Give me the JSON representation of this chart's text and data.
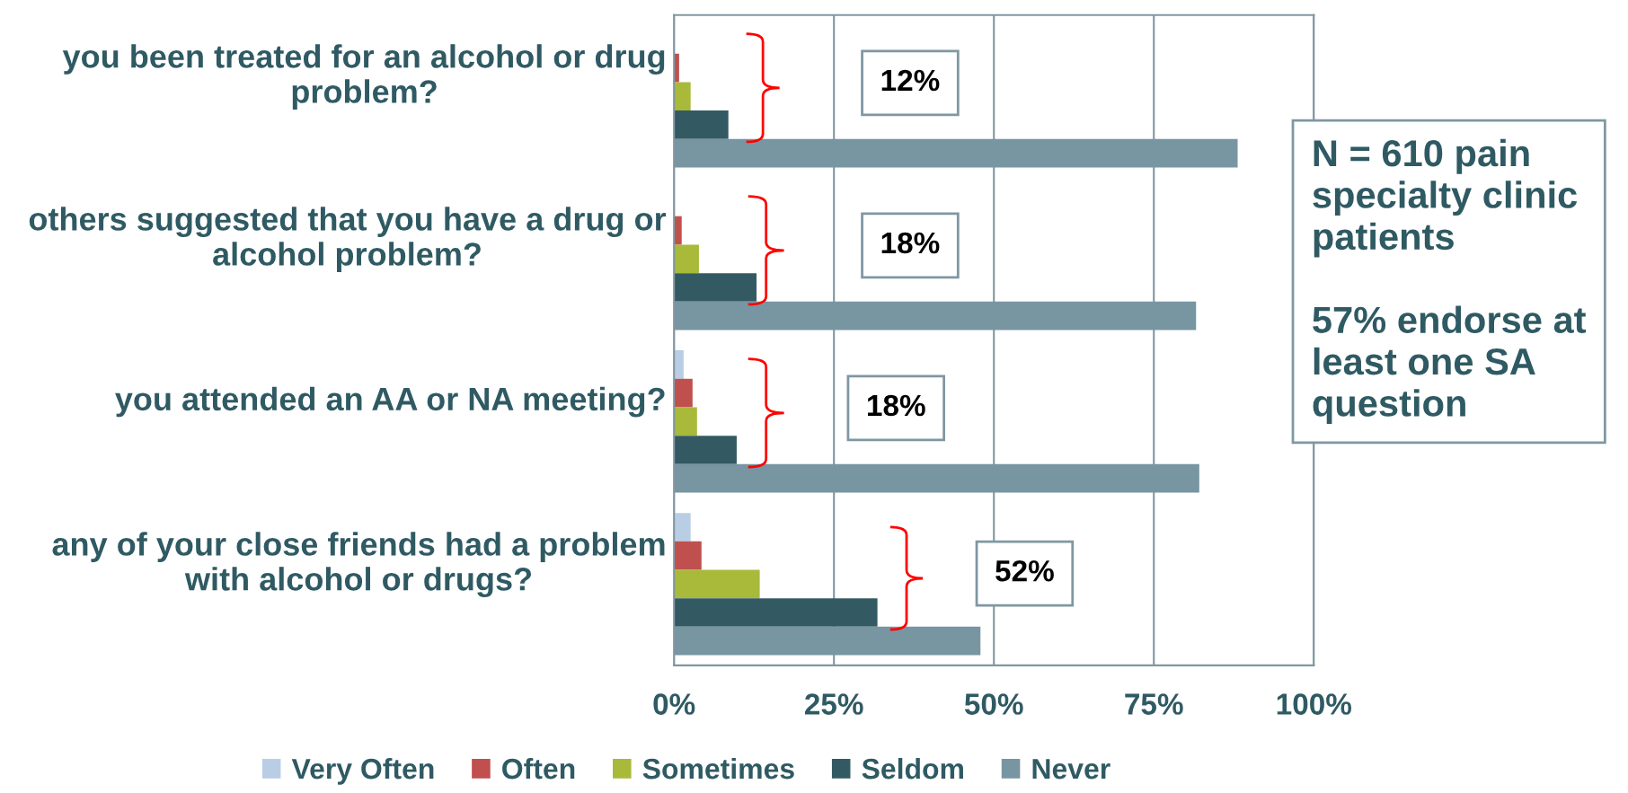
{
  "chart_data": {
    "type": "bar",
    "orientation": "horizontal",
    "categories": [
      "you been treated for an alcohol or drug problem?",
      "others suggested that you have a drug or alcohol problem?",
      "you attended an AA or NA meeting?",
      "any of your close friends had a problem with alcohol or drugs?"
    ],
    "series": [
      {
        "name": "Very Often",
        "color": "#b9cde5",
        "values": [
          0,
          null,
          1.5,
          2.6
        ]
      },
      {
        "name": "Often",
        "color": "#c0504d",
        "values": [
          0.8,
          1.2,
          2.9,
          4.3
        ]
      },
      {
        "name": "Sometimes",
        "color": "#a9b93a",
        "values": [
          2.6,
          3.9,
          3.6,
          13.4
        ]
      },
      {
        "name": "Seldom",
        "color": "#335a62",
        "values": [
          8.5,
          12.9,
          9.8,
          31.8
        ]
      },
      {
        "name": "Never",
        "color": "#7895a2",
        "values": [
          88.1,
          81.6,
          82.1,
          47.9
        ]
      }
    ],
    "xlim": [
      0,
      100
    ],
    "xticks": [
      {
        "value": 0,
        "label": "0%"
      },
      {
        "value": 25,
        "label": "25%"
      },
      {
        "value": 50,
        "label": "50%"
      },
      {
        "value": 75,
        "label": "75%"
      },
      {
        "value": 100,
        "label": "100%"
      }
    ],
    "grid": "x",
    "legend": "bottom",
    "annotations": [
      "12%",
      "18%",
      "18%",
      "52%",
      "N = 610 pain specialty clinic patients\n\n57% endorse at least one SA question"
    ]
  }
}
